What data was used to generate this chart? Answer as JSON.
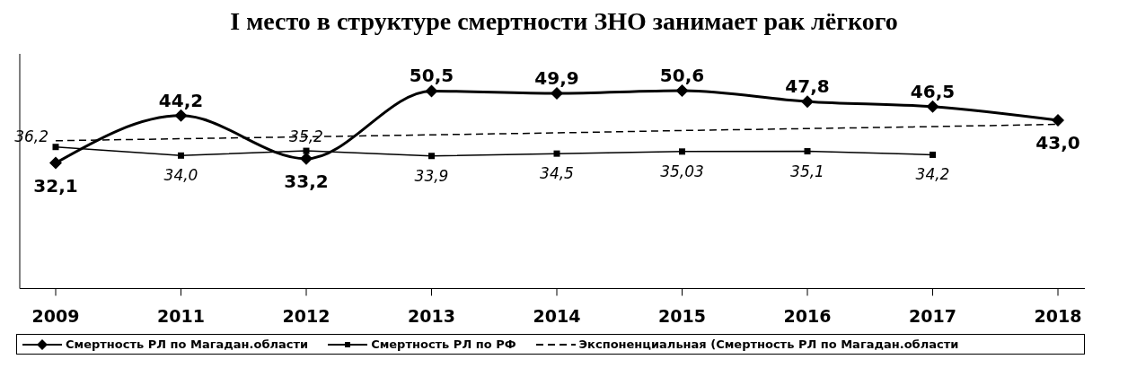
{
  "chart_data": {
    "type": "line",
    "title": "I место в структуре смертности ЗНО занимает рак лёгкого",
    "categories": [
      "2009",
      "2011",
      "2012",
      "2013",
      "2014",
      "2015",
      "2016",
      "2017",
      "2018"
    ],
    "ylim": [
      0,
      60
    ],
    "tick_labels": "x",
    "grid": false,
    "legend": "bottom",
    "series": [
      {
        "name": "Смертность РЛ  по Магадан.области",
        "color": "#000000",
        "marker": "diamond",
        "line_style": "solid",
        "values": [
          32.1,
          44.2,
          33.2,
          50.5,
          49.9,
          50.6,
          47.8,
          46.5,
          43.0
        ],
        "value_labels": [
          "32,1",
          "44,2",
          "33,2",
          "50,5",
          "49,9",
          "50,6",
          "47,8",
          "46,5",
          "43,0"
        ]
      },
      {
        "name": "Смертность РЛ по РФ",
        "color": "#000000",
        "marker": "square",
        "line_style": "solid",
        "values": [
          36.2,
          34.0,
          35.2,
          33.9,
          34.5,
          35.03,
          35.1,
          34.2,
          null
        ],
        "value_labels": [
          "36,2",
          "34,0",
          "35,2",
          "33,9",
          "34,5",
          "35,03",
          "35,1",
          "34,2",
          null
        ]
      },
      {
        "name": "Экспоненциальная (Смертность РЛ  по Магадан.области",
        "color": "#000000",
        "marker": "none",
        "line_style": "dashed",
        "values": [
          37.8,
          38.3,
          38.8,
          39.3,
          39.8,
          40.4,
          40.9,
          41.4,
          42.0
        ]
      }
    ]
  }
}
